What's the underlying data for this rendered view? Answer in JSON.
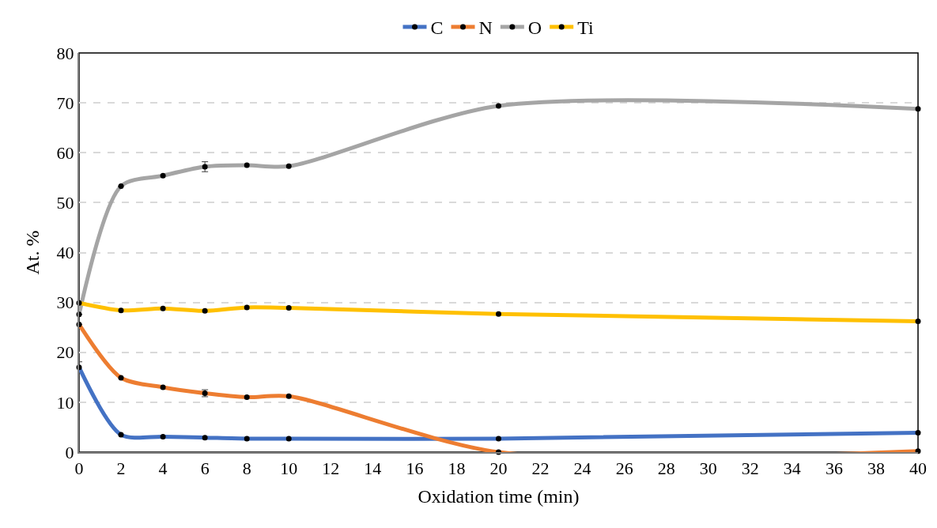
{
  "chart_data": {
    "type": "line",
    "xlabel": "Oxidation time (min)",
    "ylabel": "At. %",
    "x": [
      0,
      2,
      4,
      6,
      8,
      10,
      20,
      40
    ],
    "xlim": [
      0,
      40
    ],
    "xticks": [
      0,
      2,
      4,
      6,
      8,
      10,
      12,
      14,
      16,
      18,
      20,
      22,
      24,
      26,
      28,
      30,
      32,
      34,
      36,
      38,
      40
    ],
    "ylim": [
      0,
      80
    ],
    "yticks": [
      0,
      10,
      20,
      30,
      40,
      50,
      60,
      70,
      80
    ],
    "grid": "y",
    "legend": "top",
    "marker": "circle",
    "line_style": "solid",
    "series": [
      {
        "name": "C",
        "color": "#4472c4",
        "values": [
          17.0,
          3.5,
          3.1,
          2.9,
          2.7,
          2.7,
          2.7,
          3.9
        ],
        "errors": [
          1.1,
          null,
          null,
          null,
          null,
          null,
          null,
          null
        ]
      },
      {
        "name": "N",
        "color": "#ed7d31",
        "values": [
          25.6,
          14.9,
          13.0,
          11.8,
          11.0,
          11.2,
          0,
          0.2
        ],
        "errors": [
          null,
          null,
          null,
          0.7,
          null,
          null,
          null,
          null
        ]
      },
      {
        "name": "O",
        "color": "#a5a5a5",
        "values": [
          27.6,
          53.3,
          55.4,
          57.2,
          57.5,
          57.3,
          69.4,
          68.8
        ],
        "errors": [
          null,
          null,
          null,
          1.0,
          null,
          null,
          null,
          null
        ]
      },
      {
        "name": "Ti",
        "color": "#ffc000",
        "values": [
          29.9,
          28.4,
          28.8,
          28.3,
          29.0,
          28.9,
          27.7,
          26.2
        ]
      }
    ]
  }
}
